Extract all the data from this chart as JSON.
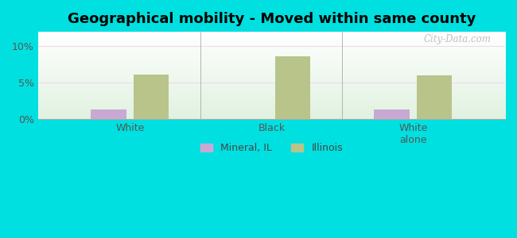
{
  "title": "Geographical mobility - Moved within same county",
  "categories": [
    "White",
    "Black",
    "White\nalone"
  ],
  "mineral_il_values": [
    1.3,
    0.0,
    1.3
  ],
  "illinois_values": [
    6.1,
    8.6,
    6.0
  ],
  "mineral_color": "#c9a8d4",
  "illinois_color": "#b8c48a",
  "bar_width": 0.25,
  "ylim": [
    0,
    12
  ],
  "yticks": [
    0,
    5,
    10
  ],
  "ytick_labels": [
    "0%",
    "5%",
    "10%"
  ],
  "legend_labels": [
    "Mineral, IL",
    "Illinois"
  ],
  "background_color": "#00e0e0",
  "grid_color": "#e8c8e8",
  "title_fontsize": 13,
  "label_fontsize": 9,
  "tick_fontsize": 9
}
